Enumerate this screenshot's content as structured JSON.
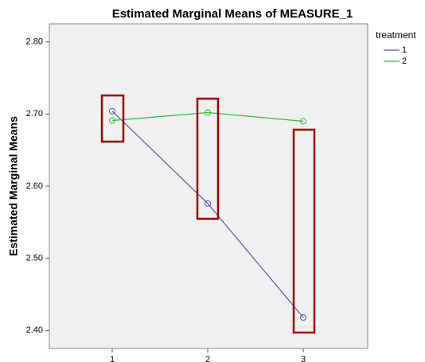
{
  "chart_data": {
    "type": "line",
    "title": "Estimated Marginal Means of MEASURE_1",
    "y_label": "Estimated Marginal Means",
    "legend_title": "treatment",
    "categories": [
      "1",
      "2",
      "3"
    ],
    "series": [
      {
        "name": "1",
        "color": "#4a5aa8",
        "values": [
          2.704,
          2.576,
          2.418
        ]
      },
      {
        "name": "2",
        "color": "#3cb43c",
        "values": [
          2.691,
          2.702,
          2.69
        ]
      }
    ],
    "ylim": [
      2.375,
      2.825
    ],
    "yticks": [
      {
        "value": 2.4,
        "label": "2.40"
      },
      {
        "value": 2.5,
        "label": "2.50"
      },
      {
        "value": 2.6,
        "label": "2.60"
      },
      {
        "value": 2.7,
        "label": "2.70"
      },
      {
        "value": 2.8,
        "label": "2.80"
      }
    ],
    "grid": false,
    "legend": "right"
  }
}
